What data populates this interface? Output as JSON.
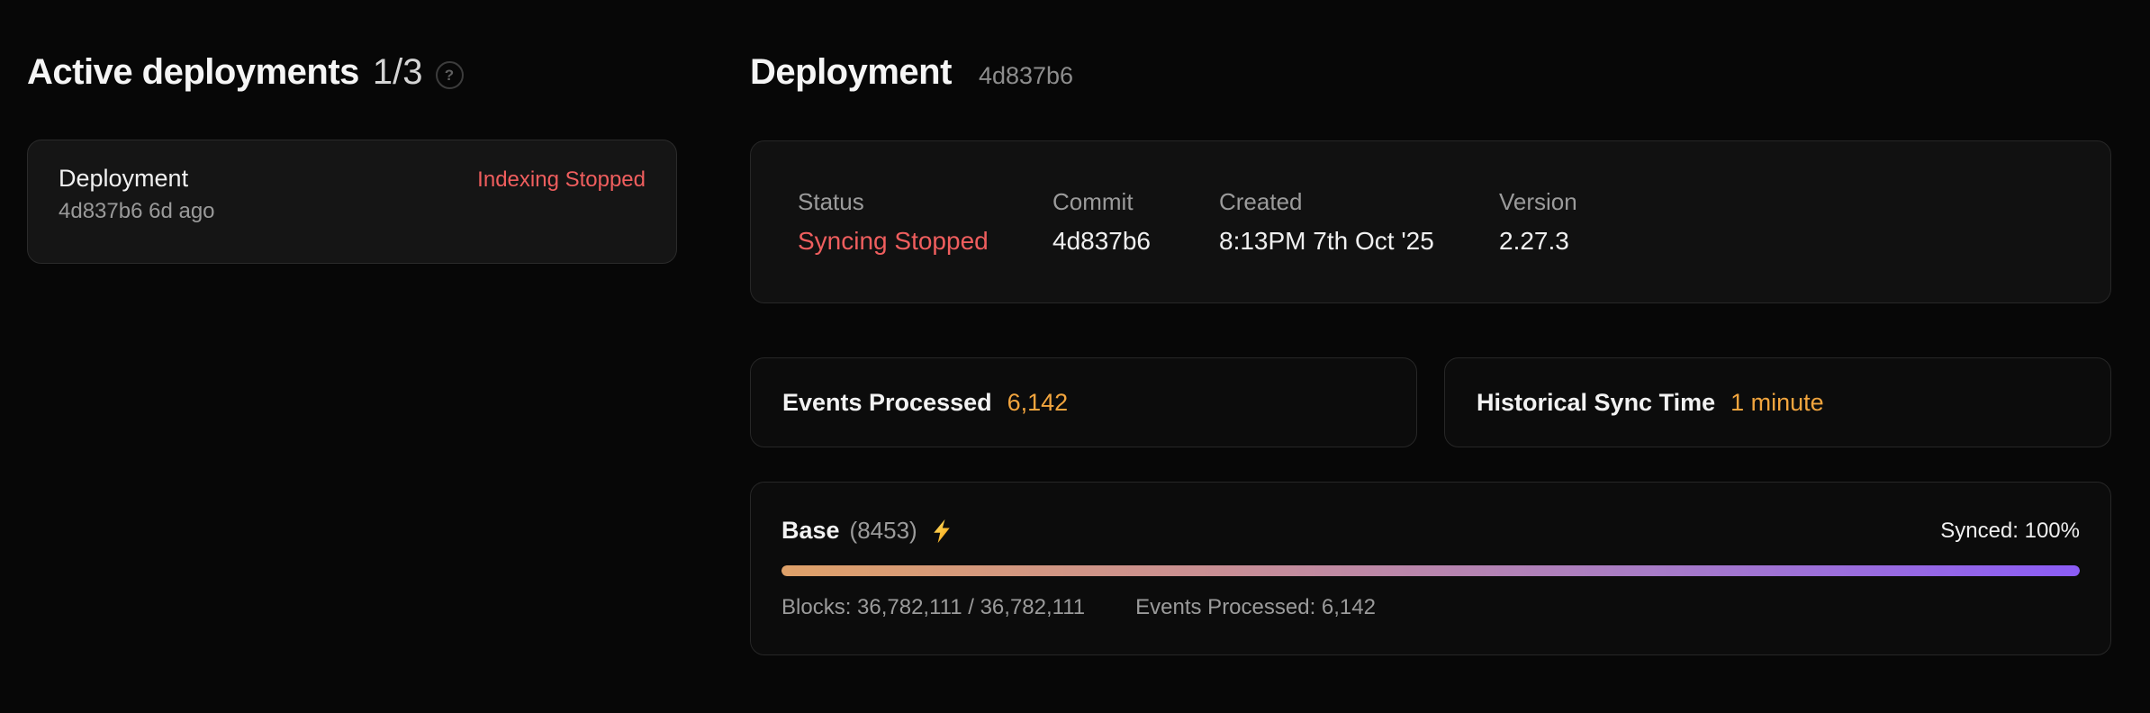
{
  "colors": {
    "page_bg": "#070707",
    "error_red": "#ef5e5e",
    "metric_amber": "#f2a53e",
    "progress_gradient": [
      "#dfa169",
      "#c98f94",
      "#a87cc6",
      "#8b5cf6"
    ]
  },
  "icons": {
    "help_glyph": "?",
    "bolt": "lightning-bolt"
  },
  "sidebar": {
    "title": "Active deployments",
    "count": "1/3",
    "deployments": [
      {
        "name": "Deployment",
        "meta": "4d837b6 6d ago",
        "status": "Indexing Stopped"
      }
    ]
  },
  "main": {
    "title": "Deployment",
    "commit_hash": "4d837b6",
    "overview": {
      "fields": [
        {
          "label": "Status",
          "value": "Syncing Stopped"
        },
        {
          "label": "Commit",
          "value": "4d837b6"
        },
        {
          "label": "Created",
          "value": "8:13PM 7th Oct '25"
        },
        {
          "label": "Version",
          "value": "2.27.3"
        }
      ]
    },
    "stats": [
      {
        "label": "Events Processed",
        "value": "6,142"
      },
      {
        "label": "Historical Sync Time",
        "value": "1 minute"
      }
    ],
    "chain": {
      "name": "Base",
      "chain_id": "(8453)",
      "synced_label": "Synced: 100%",
      "progress_percent": 100,
      "blocks_label": "Blocks: 36,782,111 / 36,782,111",
      "events_label": "Events Processed: 6,142"
    }
  }
}
